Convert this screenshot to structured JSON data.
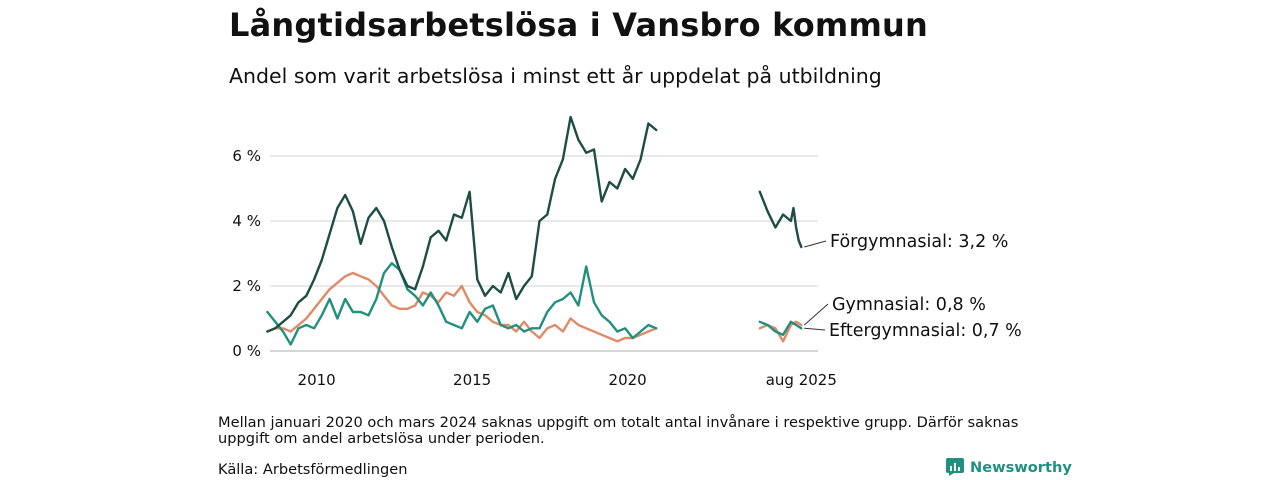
{
  "header": {
    "title": "Långtidsarbetslösa i Vansbro kommun",
    "subtitle": "Andel som varit arbetslösa i minst ett år uppdelat på utbildning"
  },
  "footer": {
    "note": "Mellan januari 2020 och mars 2024 saknas uppgift om totalt antal invånare i respektive grupp. Därför saknas uppgift om andel arbetslösa under perioden.",
    "source": "Källa: Arbetsförmedlingen",
    "brand": "Newsworthy",
    "brand_color": "#20907f"
  },
  "chart_data": {
    "type": "line",
    "title": "Långtidsarbetslösa i Vansbro kommun",
    "subtitle": "Andel som varit arbetslösa i minst ett år uppdelat på utbildning",
    "xlabel": "",
    "ylabel": "",
    "x_ticks": [
      "2010",
      "2015",
      "2020",
      "aug 2025"
    ],
    "y_ticks": [
      "0 %",
      "2 %",
      "4 %",
      "6 %"
    ],
    "ylim": [
      0,
      7.5
    ],
    "grid": "horizontal",
    "legend": "none; labels at end of lines",
    "series": [
      {
        "name": "Förgymnasial",
        "end_label": "Förgymnasial: 3,2 %",
        "color": "#1e4d44",
        "segments": [
          [
            [
              "2008-06",
              0.6
            ],
            [
              "2008-09",
              0.7
            ],
            [
              "2008-12",
              0.9
            ],
            [
              "2009-03",
              1.1
            ],
            [
              "2009-06",
              1.5
            ],
            [
              "2009-09",
              1.7
            ],
            [
              "2009-12",
              2.2
            ],
            [
              "2010-03",
              2.8
            ],
            [
              "2010-06",
              3.6
            ],
            [
              "2010-09",
              4.4
            ],
            [
              "2010-12",
              4.8
            ],
            [
              "2011-03",
              4.3
            ],
            [
              "2011-06",
              3.3
            ],
            [
              "2011-09",
              4.1
            ],
            [
              "2011-12",
              4.4
            ],
            [
              "2012-03",
              4.0
            ],
            [
              "2012-06",
              3.2
            ],
            [
              "2012-09",
              2.5
            ],
            [
              "2012-12",
              2.0
            ],
            [
              "2013-03",
              1.9
            ],
            [
              "2013-06",
              2.6
            ],
            [
              "2013-09",
              3.5
            ],
            [
              "2013-12",
              3.7
            ],
            [
              "2014-03",
              3.4
            ],
            [
              "2014-06",
              4.2
            ],
            [
              "2014-09",
              4.1
            ],
            [
              "2014-12",
              4.9
            ],
            [
              "2015-03",
              2.2
            ],
            [
              "2015-06",
              1.7
            ],
            [
              "2015-09",
              2.0
            ],
            [
              "2015-12",
              1.8
            ],
            [
              "2016-03",
              2.4
            ],
            [
              "2016-06",
              1.6
            ],
            [
              "2016-09",
              2.0
            ],
            [
              "2016-12",
              2.3
            ],
            [
              "2017-03",
              4.0
            ],
            [
              "2017-06",
              4.2
            ],
            [
              "2017-09",
              5.3
            ],
            [
              "2017-12",
              5.9
            ],
            [
              "2018-03",
              7.2
            ],
            [
              "2018-06",
              6.5
            ],
            [
              "2018-09",
              6.1
            ],
            [
              "2018-12",
              6.2
            ],
            [
              "2019-03",
              4.6
            ],
            [
              "2019-06",
              5.2
            ],
            [
              "2019-09",
              5.0
            ],
            [
              "2019-12",
              5.6
            ],
            [
              "2020-03",
              5.3
            ],
            [
              "2020-06",
              5.9
            ],
            [
              "2020-09",
              7.0
            ],
            [
              "2020-12",
              6.8
            ]
          ],
          [
            [
              "2024-04",
              4.9
            ],
            [
              "2024-07",
              4.3
            ],
            [
              "2024-10",
              3.8
            ],
            [
              "2025-01",
              4.2
            ],
            [
              "2025-04",
              4.0
            ],
            [
              "2025-05",
              4.4
            ],
            [
              "2025-06",
              3.8
            ],
            [
              "2025-07",
              3.4
            ],
            [
              "2025-08",
              3.2
            ]
          ]
        ]
      },
      {
        "name": "Gymnasial",
        "end_label": "Gymnasial: 0,8 %",
        "color": "#e08a66",
        "segments": [
          [
            [
              "2008-06",
              0.6
            ],
            [
              "2008-09",
              0.7
            ],
            [
              "2008-12",
              0.7
            ],
            [
              "2009-03",
              0.6
            ],
            [
              "2009-06",
              0.8
            ],
            [
              "2009-09",
              1.0
            ],
            [
              "2009-12",
              1.3
            ],
            [
              "2010-03",
              1.6
            ],
            [
              "2010-06",
              1.9
            ],
            [
              "2010-09",
              2.1
            ],
            [
              "2010-12",
              2.3
            ],
            [
              "2011-03",
              2.4
            ],
            [
              "2011-06",
              2.3
            ],
            [
              "2011-09",
              2.2
            ],
            [
              "2011-12",
              2.0
            ],
            [
              "2012-03",
              1.7
            ],
            [
              "2012-06",
              1.4
            ],
            [
              "2012-09",
              1.3
            ],
            [
              "2012-12",
              1.3
            ],
            [
              "2013-03",
              1.4
            ],
            [
              "2013-06",
              1.8
            ],
            [
              "2013-09",
              1.7
            ],
            [
              "2013-12",
              1.5
            ],
            [
              "2014-03",
              1.8
            ],
            [
              "2014-06",
              1.7
            ],
            [
              "2014-09",
              2.0
            ],
            [
              "2014-12",
              1.5
            ],
            [
              "2015-03",
              1.2
            ],
            [
              "2015-06",
              1.1
            ],
            [
              "2015-09",
              0.9
            ],
            [
              "2015-12",
              0.8
            ],
            [
              "2016-03",
              0.8
            ],
            [
              "2016-06",
              0.6
            ],
            [
              "2016-09",
              0.9
            ],
            [
              "2016-12",
              0.6
            ],
            [
              "2017-03",
              0.4
            ],
            [
              "2017-06",
              0.7
            ],
            [
              "2017-09",
              0.8
            ],
            [
              "2017-12",
              0.6
            ],
            [
              "2018-03",
              1.0
            ],
            [
              "2018-06",
              0.8
            ],
            [
              "2018-09",
              0.7
            ],
            [
              "2018-12",
              0.6
            ],
            [
              "2019-03",
              0.5
            ],
            [
              "2019-06",
              0.4
            ],
            [
              "2019-09",
              0.3
            ],
            [
              "2019-12",
              0.4
            ],
            [
              "2020-03",
              0.4
            ],
            [
              "2020-06",
              0.5
            ],
            [
              "2020-09",
              0.6
            ],
            [
              "2020-12",
              0.7
            ]
          ],
          [
            [
              "2024-04",
              0.7
            ],
            [
              "2024-07",
              0.8
            ],
            [
              "2024-10",
              0.7
            ],
            [
              "2025-01",
              0.3
            ],
            [
              "2025-04",
              0.8
            ],
            [
              "2025-06",
              0.9
            ],
            [
              "2025-08",
              0.8
            ]
          ]
        ]
      },
      {
        "name": "Eftergymnasial",
        "end_label": "Eftergymnasial: 0,7 %",
        "color": "#20907f",
        "segments": [
          [
            [
              "2008-06",
              1.2
            ],
            [
              "2008-09",
              0.9
            ],
            [
              "2008-12",
              0.6
            ],
            [
              "2009-03",
              0.2
            ],
            [
              "2009-06",
              0.7
            ],
            [
              "2009-09",
              0.8
            ],
            [
              "2009-12",
              0.7
            ],
            [
              "2010-03",
              1.1
            ],
            [
              "2010-06",
              1.6
            ],
            [
              "2010-09",
              1.0
            ],
            [
              "2010-12",
              1.6
            ],
            [
              "2011-03",
              1.2
            ],
            [
              "2011-06",
              1.2
            ],
            [
              "2011-09",
              1.1
            ],
            [
              "2011-12",
              1.6
            ],
            [
              "2012-03",
              2.4
            ],
            [
              "2012-06",
              2.7
            ],
            [
              "2012-09",
              2.5
            ],
            [
              "2012-12",
              1.9
            ],
            [
              "2013-03",
              1.7
            ],
            [
              "2013-06",
              1.4
            ],
            [
              "2013-09",
              1.8
            ],
            [
              "2013-12",
              1.4
            ],
            [
              "2014-03",
              0.9
            ],
            [
              "2014-06",
              0.8
            ],
            [
              "2014-09",
              0.7
            ],
            [
              "2014-12",
              1.2
            ],
            [
              "2015-03",
              0.9
            ],
            [
              "2015-06",
              1.3
            ],
            [
              "2015-09",
              1.4
            ],
            [
              "2015-12",
              0.8
            ],
            [
              "2016-03",
              0.7
            ],
            [
              "2016-06",
              0.8
            ],
            [
              "2016-09",
              0.6
            ],
            [
              "2016-12",
              0.7
            ],
            [
              "2017-03",
              0.7
            ],
            [
              "2017-06",
              1.2
            ],
            [
              "2017-09",
              1.5
            ],
            [
              "2017-12",
              1.6
            ],
            [
              "2018-03",
              1.8
            ],
            [
              "2018-06",
              1.4
            ],
            [
              "2018-09",
              2.6
            ],
            [
              "2018-12",
              1.5
            ],
            [
              "2019-03",
              1.1
            ],
            [
              "2019-06",
              0.9
            ],
            [
              "2019-09",
              0.6
            ],
            [
              "2019-12",
              0.7
            ],
            [
              "2020-03",
              0.4
            ],
            [
              "2020-06",
              0.6
            ],
            [
              "2020-09",
              0.8
            ],
            [
              "2020-12",
              0.7
            ]
          ],
          [
            [
              "2024-04",
              0.9
            ],
            [
              "2024-07",
              0.8
            ],
            [
              "2024-10",
              0.6
            ],
            [
              "2025-01",
              0.5
            ],
            [
              "2025-04",
              0.9
            ],
            [
              "2025-06",
              0.8
            ],
            [
              "2025-08",
              0.7
            ]
          ]
        ]
      }
    ]
  }
}
